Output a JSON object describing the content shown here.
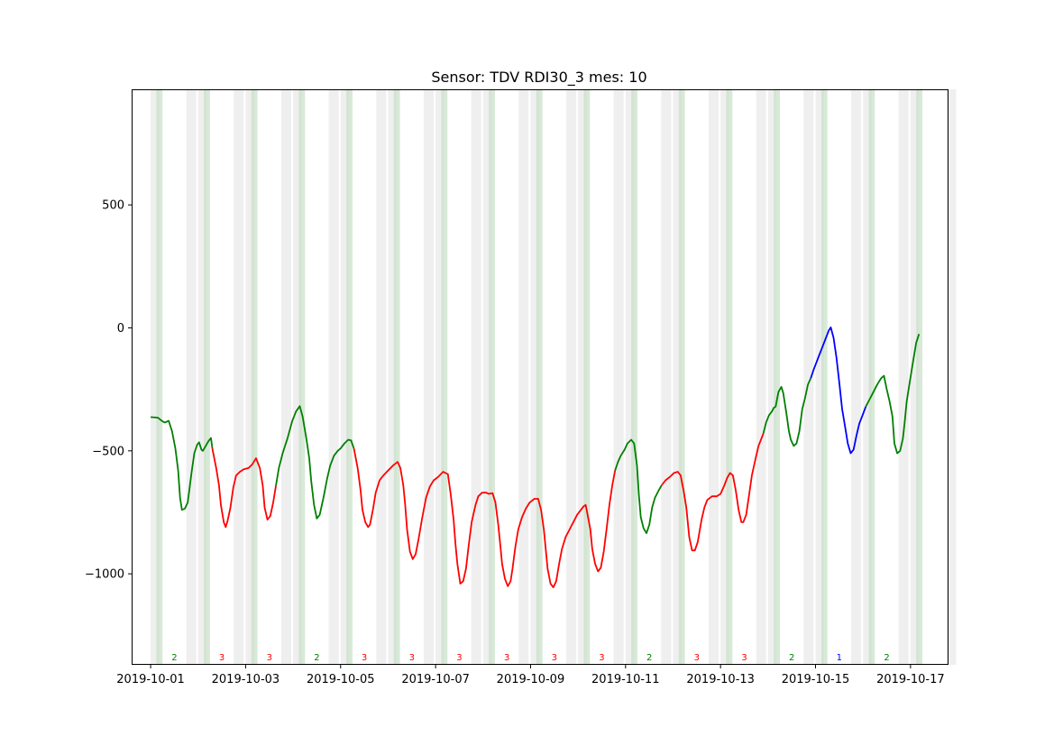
{
  "chart_data": {
    "type": "line",
    "title": "Sensor: TDV RDI30_3 mes: 10",
    "xlabel": "",
    "ylabel": "",
    "x_start": "2019-10-01",
    "x_range_days": [
      -0.4,
      16.8
    ],
    "ylim": [
      -1370,
      970
    ],
    "yticks": [
      -1000,
      -500,
      0,
      500
    ],
    "ytick_labels": [
      "−1000",
      "−500",
      "0",
      "500"
    ],
    "xticks": [
      "2019-10-01",
      "2019-10-03",
      "2019-10-05",
      "2019-10-07",
      "2019-10-09",
      "2019-10-11",
      "2019-10-13",
      "2019-10-15",
      "2019-10-17"
    ],
    "grid": false,
    "level_colors": {
      "1": "#0000ff",
      "2": "#008000",
      "3": "#ff0000"
    },
    "gray_band_color": "#dcdcdc",
    "green_band_color": "#c8dfc8",
    "daily_levels": [
      {
        "date": "2019-10-01",
        "level": "2"
      },
      {
        "date": "2019-10-02",
        "level": "3"
      },
      {
        "date": "2019-10-03",
        "level": "3"
      },
      {
        "date": "2019-10-04",
        "level": "2"
      },
      {
        "date": "2019-10-05",
        "level": "3"
      },
      {
        "date": "2019-10-06",
        "level": "3"
      },
      {
        "date": "2019-10-07",
        "level": "3"
      },
      {
        "date": "2019-10-08",
        "level": "3"
      },
      {
        "date": "2019-10-09",
        "level": "3"
      },
      {
        "date": "2019-10-10",
        "level": "3"
      },
      {
        "date": "2019-10-11",
        "level": "2"
      },
      {
        "date": "2019-10-12",
        "level": "3"
      },
      {
        "date": "2019-10-13",
        "level": "3"
      },
      {
        "date": "2019-10-14",
        "level": "2"
      },
      {
        "date": "2019-10-15",
        "level": "1"
      },
      {
        "date": "2019-10-16",
        "level": "2"
      }
    ],
    "series": [
      {
        "color": "#008000",
        "points": [
          [
            0.0,
            -363
          ],
          [
            0.15,
            -365
          ],
          [
            0.25,
            -380
          ],
          [
            0.3,
            -385
          ],
          [
            0.38,
            -378
          ],
          [
            0.45,
            -420
          ],
          [
            0.52,
            -490
          ],
          [
            0.58,
            -580
          ],
          [
            0.62,
            -690
          ],
          [
            0.66,
            -740
          ],
          [
            0.72,
            -735
          ],
          [
            0.78,
            -710
          ],
          [
            0.82,
            -650
          ],
          [
            0.86,
            -590
          ],
          [
            0.92,
            -510
          ],
          [
            0.98,
            -475
          ],
          [
            1.02,
            -465
          ],
          [
            1.07,
            -495
          ],
          [
            1.1,
            -500
          ],
          [
            1.16,
            -480
          ],
          [
            1.22,
            -460
          ],
          [
            1.27,
            -448
          ],
          [
            1.3,
            -490
          ]
        ]
      },
      {
        "color": "#ff0000",
        "points": [
          [
            1.3,
            -490
          ],
          [
            1.38,
            -570
          ],
          [
            1.44,
            -640
          ],
          [
            1.48,
            -720
          ],
          [
            1.54,
            -790
          ],
          [
            1.58,
            -810
          ],
          [
            1.62,
            -785
          ],
          [
            1.68,
            -730
          ],
          [
            1.74,
            -650
          ],
          [
            1.8,
            -600
          ],
          [
            1.88,
            -585
          ],
          [
            1.96,
            -575
          ],
          [
            2.06,
            -570
          ],
          [
            2.14,
            -555
          ],
          [
            2.22,
            -530
          ],
          [
            2.3,
            -570
          ],
          [
            2.36,
            -640
          ],
          [
            2.4,
            -730
          ],
          [
            2.46,
            -780
          ],
          [
            2.52,
            -765
          ],
          [
            2.58,
            -710
          ],
          [
            2.64,
            -640
          ]
        ]
      },
      {
        "color": "#008000",
        "points": [
          [
            2.64,
            -640
          ],
          [
            2.7,
            -570
          ],
          [
            2.78,
            -510
          ],
          [
            2.88,
            -450
          ],
          [
            2.98,
            -380
          ],
          [
            3.06,
            -340
          ],
          [
            3.14,
            -318
          ],
          [
            3.2,
            -360
          ],
          [
            3.28,
            -450
          ],
          [
            3.34,
            -530
          ],
          [
            3.38,
            -620
          ],
          [
            3.44,
            -720
          ],
          [
            3.5,
            -775
          ],
          [
            3.56,
            -760
          ],
          [
            3.64,
            -690
          ],
          [
            3.72,
            -610
          ],
          [
            3.78,
            -560
          ],
          [
            3.86,
            -520
          ],
          [
            3.94,
            -500
          ],
          [
            4.0,
            -490
          ],
          [
            4.08,
            -470
          ],
          [
            4.16,
            -455
          ],
          [
            4.22,
            -458
          ],
          [
            4.28,
            -490
          ]
        ]
      },
      {
        "color": "#ff0000",
        "points": [
          [
            4.28,
            -490
          ],
          [
            4.36,
            -570
          ],
          [
            4.42,
            -660
          ],
          [
            4.46,
            -740
          ],
          [
            4.52,
            -790
          ],
          [
            4.58,
            -810
          ],
          [
            4.62,
            -800
          ],
          [
            4.68,
            -740
          ],
          [
            4.74,
            -670
          ],
          [
            4.82,
            -620
          ],
          [
            4.9,
            -600
          ],
          [
            5.0,
            -580
          ],
          [
            5.1,
            -560
          ],
          [
            5.2,
            -545
          ],
          [
            5.26,
            -570
          ],
          [
            5.32,
            -640
          ],
          [
            5.36,
            -720
          ],
          [
            5.4,
            -820
          ],
          [
            5.46,
            -910
          ],
          [
            5.52,
            -940
          ],
          [
            5.58,
            -920
          ],
          [
            5.64,
            -860
          ],
          [
            5.72,
            -770
          ],
          [
            5.8,
            -690
          ],
          [
            5.88,
            -645
          ],
          [
            5.96,
            -620
          ],
          [
            6.06,
            -605
          ],
          [
            6.16,
            -585
          ],
          [
            6.26,
            -595
          ],
          [
            6.32,
            -680
          ],
          [
            6.38,
            -780
          ],
          [
            6.42,
            -880
          ],
          [
            6.46,
            -960
          ],
          [
            6.52,
            -1040
          ],
          [
            6.58,
            -1030
          ],
          [
            6.64,
            -980
          ],
          [
            6.7,
            -880
          ],
          [
            6.76,
            -790
          ],
          [
            6.84,
            -720
          ],
          [
            6.9,
            -685
          ],
          [
            6.98,
            -670
          ],
          [
            7.06,
            -670
          ],
          [
            7.12,
            -675
          ],
          [
            7.2,
            -672
          ],
          [
            7.26,
            -710
          ],
          [
            7.32,
            -800
          ],
          [
            7.36,
            -880
          ],
          [
            7.4,
            -960
          ],
          [
            7.46,
            -1020
          ],
          [
            7.52,
            -1050
          ],
          [
            7.58,
            -1030
          ],
          [
            7.62,
            -980
          ],
          [
            7.68,
            -890
          ],
          [
            7.74,
            -820
          ],
          [
            7.82,
            -770
          ],
          [
            7.9,
            -735
          ],
          [
            7.98,
            -710
          ],
          [
            8.08,
            -695
          ],
          [
            8.16,
            -695
          ],
          [
            8.22,
            -740
          ],
          [
            8.28,
            -820
          ],
          [
            8.32,
            -900
          ],
          [
            8.36,
            -980
          ],
          [
            8.42,
            -1040
          ],
          [
            8.48,
            -1055
          ],
          [
            8.54,
            -1030
          ],
          [
            8.6,
            -960
          ],
          [
            8.66,
            -900
          ],
          [
            8.74,
            -850
          ],
          [
            8.82,
            -820
          ],
          [
            8.9,
            -790
          ],
          [
            8.98,
            -760
          ],
          [
            9.06,
            -740
          ],
          [
            9.12,
            -725
          ],
          [
            9.16,
            -720
          ],
          [
            9.2,
            -760
          ],
          [
            9.26,
            -820
          ],
          [
            9.3,
            -900
          ],
          [
            9.36,
            -960
          ],
          [
            9.42,
            -990
          ],
          [
            9.48,
            -975
          ],
          [
            9.54,
            -910
          ],
          [
            9.6,
            -820
          ],
          [
            9.66,
            -720
          ],
          [
            9.72,
            -640
          ],
          [
            9.78,
            -580
          ]
        ]
      },
      {
        "color": "#008000",
        "points": [
          [
            9.78,
            -580
          ],
          [
            9.84,
            -545
          ],
          [
            9.9,
            -520
          ],
          [
            9.98,
            -495
          ],
          [
            10.04,
            -470
          ],
          [
            10.12,
            -455
          ],
          [
            10.18,
            -470
          ],
          [
            10.24,
            -560
          ],
          [
            10.28,
            -680
          ],
          [
            10.32,
            -770
          ],
          [
            10.38,
            -815
          ],
          [
            10.44,
            -835
          ],
          [
            10.5,
            -800
          ],
          [
            10.56,
            -730
          ],
          [
            10.62,
            -690
          ],
          [
            10.7,
            -660
          ],
          [
            10.76,
            -640
          ]
        ]
      },
      {
        "color": "#ff0000",
        "points": [
          [
            10.76,
            -640
          ],
          [
            10.84,
            -620
          ],
          [
            10.94,
            -605
          ],
          [
            11.02,
            -590
          ],
          [
            11.1,
            -585
          ],
          [
            11.16,
            -600
          ],
          [
            11.22,
            -660
          ],
          [
            11.28,
            -730
          ],
          [
            11.34,
            -850
          ],
          [
            11.4,
            -905
          ],
          [
            11.46,
            -905
          ],
          [
            11.52,
            -870
          ],
          [
            11.6,
            -780
          ],
          [
            11.66,
            -730
          ],
          [
            11.72,
            -700
          ],
          [
            11.82,
            -685
          ],
          [
            11.92,
            -685
          ],
          [
            12.0,
            -675
          ],
          [
            12.08,
            -640
          ],
          [
            12.14,
            -610
          ],
          [
            12.2,
            -590
          ],
          [
            12.26,
            -600
          ],
          [
            12.32,
            -660
          ],
          [
            12.38,
            -740
          ],
          [
            12.44,
            -790
          ],
          [
            12.48,
            -790
          ],
          [
            12.54,
            -760
          ],
          [
            12.6,
            -680
          ],
          [
            12.66,
            -600
          ],
          [
            12.74,
            -530
          ],
          [
            12.8,
            -480
          ],
          [
            12.86,
            -450
          ],
          [
            12.9,
            -430
          ]
        ]
      },
      {
        "color": "#008000",
        "points": [
          [
            12.9,
            -430
          ],
          [
            12.96,
            -385
          ],
          [
            13.02,
            -355
          ],
          [
            13.08,
            -340
          ],
          [
            13.12,
            -325
          ],
          [
            13.16,
            -320
          ],
          [
            13.22,
            -260
          ],
          [
            13.28,
            -240
          ],
          [
            13.32,
            -265
          ],
          [
            13.38,
            -340
          ],
          [
            13.44,
            -420
          ],
          [
            13.48,
            -455
          ],
          [
            13.54,
            -480
          ],
          [
            13.6,
            -470
          ],
          [
            13.66,
            -420
          ],
          [
            13.72,
            -330
          ],
          [
            13.78,
            -285
          ],
          [
            13.84,
            -230
          ],
          [
            13.9,
            -205
          ]
        ]
      },
      {
        "color": "#0000ff",
        "points": [
          [
            13.9,
            -205
          ],
          [
            13.96,
            -170
          ],
          [
            14.02,
            -140
          ],
          [
            14.08,
            -110
          ],
          [
            14.14,
            -80
          ],
          [
            14.22,
            -40
          ],
          [
            14.28,
            -10
          ],
          [
            14.32,
            2
          ],
          [
            14.38,
            -40
          ],
          [
            14.44,
            -120
          ],
          [
            14.5,
            -220
          ],
          [
            14.56,
            -330
          ],
          [
            14.62,
            -400
          ],
          [
            14.68,
            -470
          ],
          [
            14.74,
            -510
          ],
          [
            14.8,
            -495
          ],
          [
            14.86,
            -440
          ],
          [
            14.92,
            -390
          ],
          [
            15.0,
            -350
          ],
          [
            15.06,
            -320
          ]
        ]
      },
      {
        "color": "#008000",
        "points": [
          [
            15.06,
            -320
          ],
          [
            15.14,
            -290
          ],
          [
            15.22,
            -260
          ],
          [
            15.3,
            -230
          ],
          [
            15.38,
            -205
          ],
          [
            15.44,
            -195
          ],
          [
            15.5,
            -250
          ],
          [
            15.56,
            -300
          ],
          [
            15.62,
            -360
          ],
          [
            15.66,
            -470
          ],
          [
            15.72,
            -510
          ],
          [
            15.78,
            -500
          ],
          [
            15.84,
            -450
          ],
          [
            15.88,
            -380
          ],
          [
            15.92,
            -300
          ],
          [
            16.0,
            -200
          ],
          [
            16.06,
            -130
          ],
          [
            16.12,
            -60
          ],
          [
            16.18,
            -25
          ]
        ]
      }
    ]
  }
}
